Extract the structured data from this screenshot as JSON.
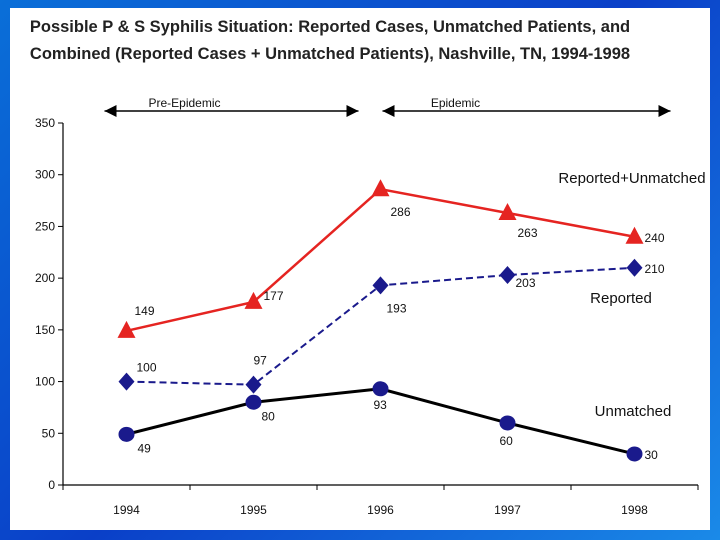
{
  "chart_data": {
    "type": "line",
    "title_lines": [
      "Possible P & S Syphilis Situation: Reported Cases, Unmatched Patients, and",
      "Combined (Reported Cases + Unmatched Patients), Nashville,  TN, 1994-1998"
    ],
    "categories": [
      "1994",
      "1995",
      "1996",
      "1997",
      "1998"
    ],
    "ylim": [
      0,
      350
    ],
    "yticks": [
      "0",
      "50",
      "100",
      "150",
      "200",
      "250",
      "300",
      "350"
    ],
    "ytick_values": [
      0,
      50,
      100,
      150,
      200,
      250,
      300,
      350
    ],
    "grid": false,
    "periods": [
      {
        "label": "Pre-Epidemic",
        "from": "1994",
        "to": "1996"
      },
      {
        "label": "Epidemic",
        "from": "1996",
        "to": "1998"
      }
    ],
    "series": [
      {
        "name": "Reported+Unmatched",
        "values": [
          149,
          177,
          286,
          263,
          240
        ],
        "labels": [
          "149",
          "177",
          "286",
          "263",
          "240"
        ],
        "color": "#e52421",
        "marker": "triangle",
        "line": "solid"
      },
      {
        "name": "Reported",
        "values": [
          100,
          97,
          193,
          203,
          210
        ],
        "labels": [
          "100",
          "97",
          "193",
          "203",
          "210"
        ],
        "color": "#1a1a8c",
        "marker": "diamond",
        "line": "dashed"
      },
      {
        "name": "Unmatched",
        "values": [
          49,
          80,
          93,
          60,
          30
        ],
        "labels": [
          "49",
          "80",
          "93",
          "60",
          "30"
        ],
        "color": "#000000",
        "marker_color": "#1a1a8c",
        "marker": "circle",
        "line": "solid"
      }
    ]
  }
}
